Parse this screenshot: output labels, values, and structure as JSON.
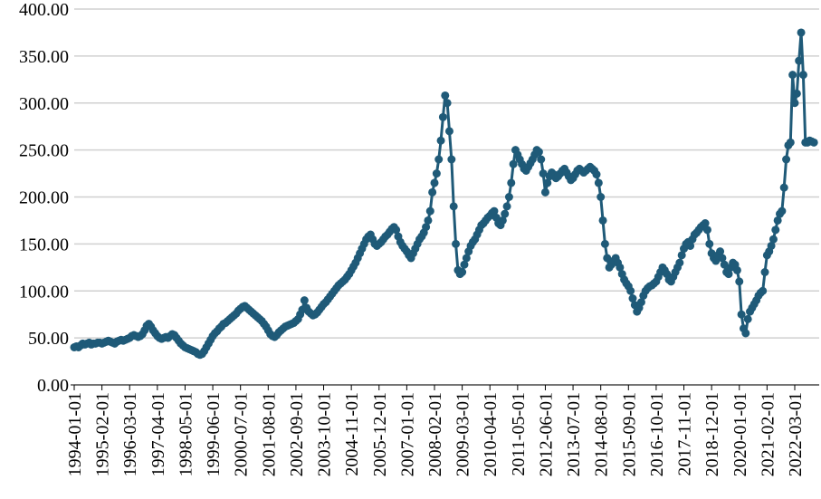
{
  "chart_data": {
    "type": "line",
    "categories": [
      "1994-01-01",
      null,
      null,
      null,
      null,
      null,
      null,
      null,
      null,
      null,
      null,
      null,
      null,
      "1995-02-01",
      null,
      null,
      null,
      null,
      null,
      null,
      null,
      null,
      null,
      null,
      null,
      null,
      "1996-03-01",
      null,
      null,
      null,
      null,
      null,
      null,
      null,
      null,
      null,
      null,
      null,
      null,
      "1997-04-01",
      null,
      null,
      null,
      null,
      null,
      null,
      null,
      null,
      null,
      null,
      null,
      null,
      "1998-05-01",
      null,
      null,
      null,
      null,
      null,
      null,
      null,
      null,
      null,
      null,
      null,
      null,
      "1999-06-01",
      null,
      null,
      null,
      null,
      null,
      null,
      null,
      null,
      null,
      null,
      null,
      null,
      "2000-07-01",
      null,
      null,
      null,
      null,
      null,
      null,
      null,
      null,
      null,
      null,
      null,
      null,
      "2001-08-01",
      null,
      null,
      null,
      null,
      null,
      null,
      null,
      null,
      null,
      null,
      null,
      null,
      "2002-09-01",
      null,
      null,
      null,
      null,
      null,
      null,
      null,
      null,
      null,
      null,
      null,
      null,
      "2003-10-01",
      null,
      null,
      null,
      null,
      null,
      null,
      null,
      null,
      null,
      null,
      null,
      null,
      "2004-11-01",
      null,
      null,
      null,
      null,
      null,
      null,
      null,
      null,
      null,
      null,
      null,
      null,
      "2005-12-01",
      null,
      null,
      null,
      null,
      null,
      null,
      null,
      null,
      null,
      null,
      null,
      null,
      "2007-01-01",
      null,
      null,
      null,
      null,
      null,
      null,
      null,
      null,
      null,
      null,
      null,
      null,
      "2008-02-01",
      null,
      null,
      null,
      null,
      null,
      null,
      null,
      null,
      null,
      null,
      null,
      null,
      "2009-03-01",
      null,
      null,
      null,
      null,
      null,
      null,
      null,
      null,
      null,
      null,
      null,
      null,
      "2010-04-01",
      null,
      null,
      null,
      null,
      null,
      null,
      null,
      null,
      null,
      null,
      null,
      null,
      "2011-05-01",
      null,
      null,
      null,
      null,
      null,
      null,
      null,
      null,
      null,
      null,
      null,
      null,
      "2012-06-01",
      null,
      null,
      null,
      null,
      null,
      null,
      null,
      null,
      null,
      null,
      null,
      null,
      "2013-07-01",
      null,
      null,
      null,
      null,
      null,
      null,
      null,
      null,
      null,
      null,
      null,
      null,
      "2014-08-01",
      null,
      null,
      null,
      null,
      null,
      null,
      null,
      null,
      null,
      null,
      null,
      null,
      "2015-09-01",
      null,
      null,
      null,
      null,
      null,
      null,
      null,
      null,
      null,
      null,
      null,
      null,
      "2016-10-01",
      null,
      null,
      null,
      null,
      null,
      null,
      null,
      null,
      null,
      null,
      null,
      null,
      "2017-11-01",
      null,
      null,
      null,
      null,
      null,
      null,
      null,
      null,
      null,
      null,
      null,
      null,
      "2018-12-01",
      null,
      null,
      null,
      null,
      null,
      null,
      null,
      null,
      null,
      null,
      null,
      null,
      "2020-01-01",
      null,
      null,
      null,
      null,
      null,
      null,
      null,
      null,
      null,
      null,
      null,
      null,
      "2021-02-01",
      null,
      null,
      null,
      null,
      null,
      null,
      null,
      null,
      null,
      null,
      null,
      null,
      "2022-03-01",
      null,
      null,
      null,
      null,
      null,
      null,
      null,
      null,
      null
    ],
    "values": [
      40,
      41,
      40,
      42,
      44,
      43,
      44,
      45,
      43,
      44,
      44,
      45,
      45,
      44,
      45,
      46,
      47,
      46,
      45,
      44,
      46,
      47,
      48,
      47,
      48,
      49,
      50,
      52,
      53,
      52,
      51,
      52,
      54,
      58,
      63,
      65,
      62,
      58,
      55,
      52,
      50,
      49,
      50,
      51,
      50,
      52,
      54,
      53,
      50,
      47,
      44,
      42,
      40,
      39,
      38,
      37,
      36,
      35,
      33,
      32,
      33,
      36,
      40,
      44,
      48,
      52,
      55,
      57,
      60,
      62,
      65,
      66,
      68,
      70,
      72,
      74,
      76,
      79,
      81,
      83,
      84,
      82,
      80,
      78,
      76,
      74,
      72,
      70,
      68,
      65,
      62,
      58,
      54,
      52,
      51,
      53,
      56,
      58,
      60,
      62,
      63,
      64,
      65,
      66,
      68,
      70,
      75,
      80,
      90,
      82,
      78,
      76,
      74,
      75,
      77,
      80,
      83,
      86,
      88,
      91,
      94,
      97,
      100,
      103,
      106,
      108,
      110,
      112,
      115,
      118,
      122,
      126,
      130,
      135,
      140,
      145,
      150,
      155,
      158,
      160,
      155,
      150,
      148,
      150,
      152,
      155,
      158,
      160,
      163,
      166,
      168,
      165,
      158,
      152,
      148,
      145,
      142,
      138,
      135,
      140,
      145,
      150,
      155,
      158,
      162,
      168,
      175,
      185,
      205,
      215,
      225,
      240,
      260,
      285,
      308,
      300,
      270,
      240,
      190,
      150,
      122,
      118,
      120,
      128,
      135,
      142,
      148,
      152,
      155,
      160,
      165,
      170,
      172,
      175,
      178,
      180,
      183,
      185,
      178,
      172,
      170,
      175,
      182,
      190,
      200,
      215,
      235,
      250,
      245,
      240,
      235,
      230,
      228,
      232,
      236,
      240,
      245,
      250,
      248,
      240,
      225,
      205,
      215,
      222,
      226,
      224,
      220,
      222,
      225,
      228,
      230,
      226,
      222,
      218,
      220,
      224,
      228,
      230,
      228,
      226,
      228,
      230,
      232,
      230,
      228,
      224,
      215,
      200,
      175,
      150,
      135,
      125,
      128,
      132,
      135,
      130,
      125,
      118,
      112,
      108,
      105,
      100,
      92,
      85,
      78,
      82,
      88,
      95,
      100,
      103,
      105,
      106,
      108,
      110,
      115,
      120,
      125,
      122,
      118,
      112,
      110,
      115,
      120,
      125,
      130,
      138,
      145,
      150,
      152,
      148,
      155,
      160,
      162,
      165,
      168,
      170,
      172,
      165,
      150,
      140,
      135,
      132,
      138,
      142,
      135,
      128,
      120,
      118,
      125,
      130,
      128,
      122,
      110,
      75,
      60,
      55,
      70,
      78,
      82,
      86,
      90,
      95,
      98,
      100,
      120,
      138,
      142,
      148,
      155,
      165,
      175,
      182,
      185,
      210,
      240,
      255,
      258,
      330,
      300,
      310,
      345,
      375,
      330,
      258,
      258,
      260,
      259,
      258
    ],
    "color": "#1f5a78",
    "ylim": [
      0,
      400
    ],
    "yticks": [
      {
        "value": 0,
        "label": "0.00"
      },
      {
        "value": 50,
        "label": "50.00"
      },
      {
        "value": 100,
        "label": "100.00"
      },
      {
        "value": 150,
        "label": "150.00"
      },
      {
        "value": 200,
        "label": "200.00"
      },
      {
        "value": 250,
        "label": "250.00"
      },
      {
        "value": 300,
        "label": "300.00"
      },
      {
        "value": 350,
        "label": "350.00"
      },
      {
        "value": 400,
        "label": "400.00"
      }
    ],
    "grid": true
  }
}
